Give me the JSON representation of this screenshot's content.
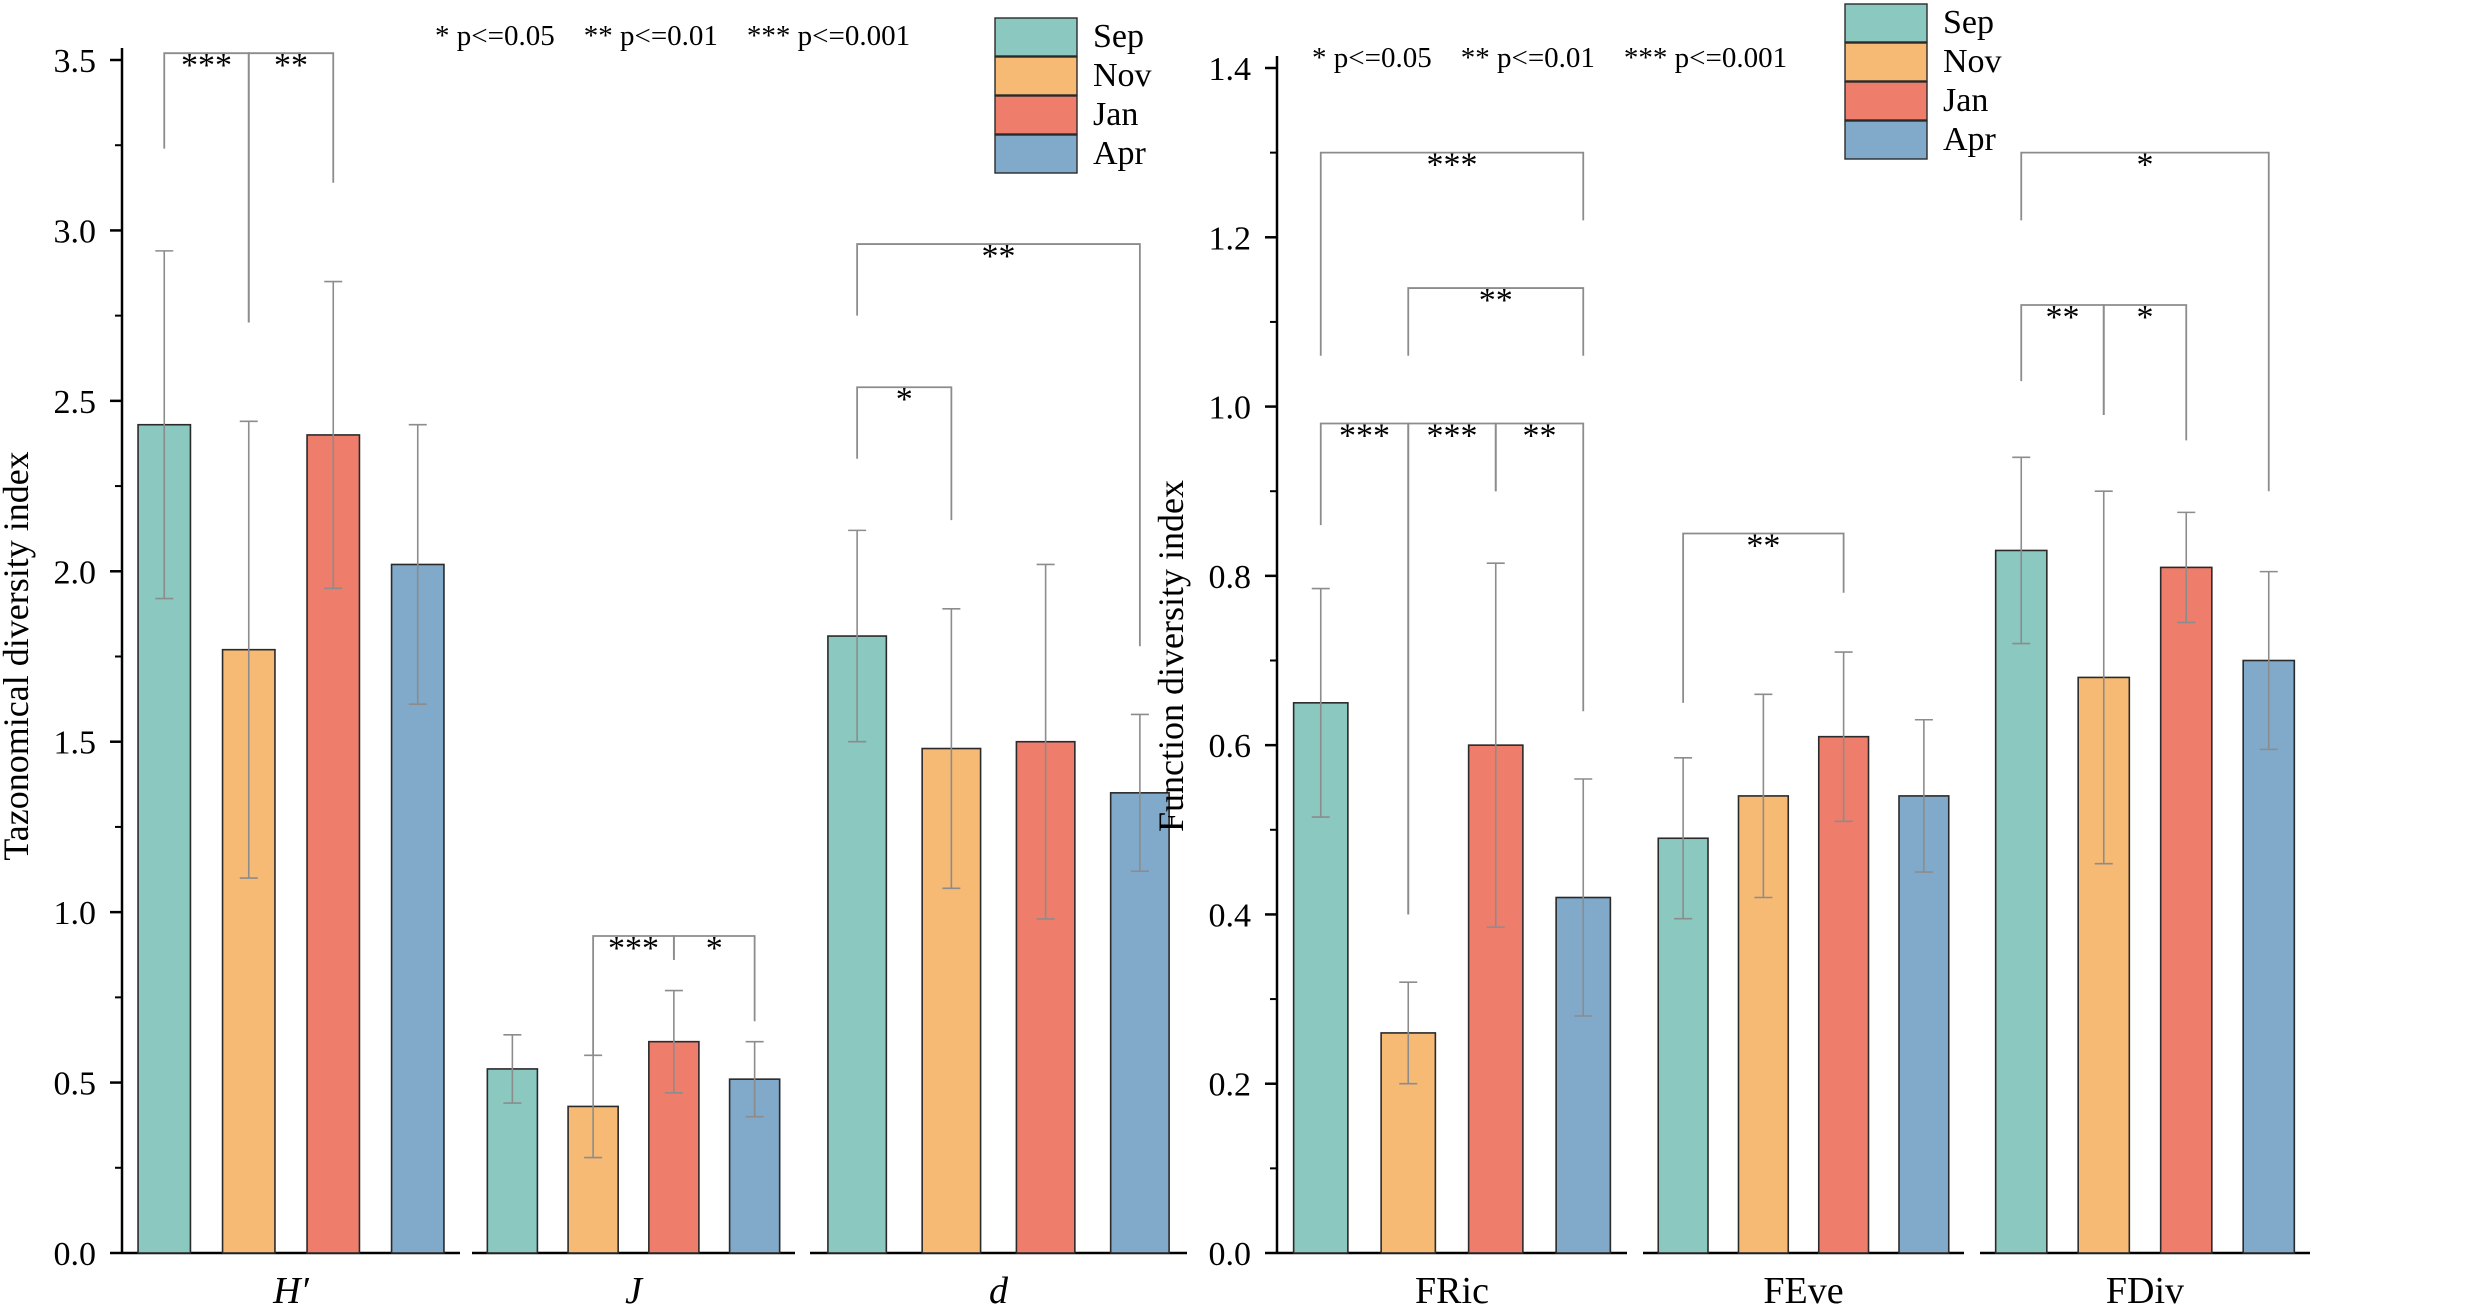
{
  "colors": {
    "Sep": "#8ac8c0",
    "Nov": "#f6ba74",
    "Jan": "#ef7d6b",
    "Apr": "#80a9ca",
    "axis": "#000000",
    "errorbar": "#8c8c8c"
  },
  "sig_key": "* p<=0.05    ** p<=0.01    *** p<=0.001",
  "chart_data": [
    {
      "type": "bar",
      "ylabel": "Tazonomical diversity index",
      "ylim": [
        0,
        3.5
      ],
      "yticks": [
        "0.0",
        "0.5",
        "1.0",
        "1.5",
        "2.0",
        "2.5",
        "3.0",
        "3.5"
      ],
      "legend": [
        "Sep",
        "Nov",
        "Jan",
        "Apr"
      ],
      "legend_position": "top-right",
      "groups": [
        {
          "name": "H′",
          "italic": true,
          "values": [
            2.43,
            1.77,
            2.4,
            2.02
          ],
          "errors": [
            0.51,
            0.67,
            0.45,
            0.41
          ],
          "sig": [
            {
              "a": 0,
              "b": 1,
              "label": "***",
              "y": 3.52,
              "ya": 3.24,
              "yb": 2.73
            },
            {
              "a": 1,
              "b": 2,
              "label": "**",
              "y": 3.52,
              "ya": 2.73,
              "yb": 3.14
            }
          ]
        },
        {
          "name": "J",
          "italic": true,
          "values": [
            0.54,
            0.43,
            0.62,
            0.51
          ],
          "errors": [
            0.1,
            0.15,
            0.15,
            0.11
          ],
          "sig": [
            {
              "a": 1,
              "b": 2,
              "label": "***",
              "y": 0.93,
              "ya": 0.58,
              "yb": 0.86
            },
            {
              "a": 2,
              "b": 3,
              "label": "*",
              "y": 0.93,
              "ya": 0.86,
              "yb": 0.68
            }
          ]
        },
        {
          "name": "d",
          "italic": true,
          "values": [
            1.81,
            1.48,
            1.5,
            1.35
          ],
          "errors": [
            0.31,
            0.41,
            0.52,
            0.23
          ],
          "sig": [
            {
              "a": 0,
              "b": 1,
              "label": "*",
              "y": 2.54,
              "ya": 2.33,
              "yb": 2.15
            },
            {
              "a": 0,
              "b": 3,
              "label": "**",
              "y": 2.96,
              "ya": 2.75,
              "yb": 1.78
            }
          ]
        }
      ]
    },
    {
      "type": "bar",
      "ylabel": "Function diversity index",
      "ylim": [
        0,
        1.4
      ],
      "yticks": [
        "0.0",
        "0.2",
        "0.4",
        "0.6",
        "0.8",
        "1.0",
        "1.2",
        "1.4"
      ],
      "legend": [
        "Sep",
        "Nov",
        "Jan",
        "Apr"
      ],
      "legend_position": "top-right",
      "groups": [
        {
          "name": "FRic",
          "italic": false,
          "values": [
            0.65,
            0.26,
            0.6,
            0.42
          ],
          "errors": [
            0.135,
            0.06,
            0.215,
            0.14
          ],
          "sig": [
            {
              "a": 0,
              "b": 1,
              "label": "***",
              "y": 0.98,
              "ya": 0.86,
              "yb": 0.4
            },
            {
              "a": 1,
              "b": 2,
              "label": "***",
              "y": 0.98,
              "ya": 0.4,
              "yb": 0.9
            },
            {
              "a": 2,
              "b": 3,
              "label": "**",
              "y": 0.98,
              "ya": 0.9,
              "yb": 0.64
            },
            {
              "a": 1,
              "b": 3,
              "label": "**",
              "y": 1.14,
              "ya": 1.06,
              "yb": 1.06
            },
            {
              "a": 0,
              "b": 3,
              "label": "***",
              "y": 1.3,
              "ya": 1.06,
              "yb": 1.22
            }
          ]
        },
        {
          "name": "FEve",
          "italic": false,
          "values": [
            0.49,
            0.54,
            0.61,
            0.54
          ],
          "errors": [
            0.095,
            0.12,
            0.1,
            0.09
          ],
          "sig": [
            {
              "a": 0,
              "b": 2,
              "label": "**",
              "y": 0.85,
              "ya": 0.65,
              "yb": 0.78
            }
          ]
        },
        {
          "name": "FDiv",
          "italic": false,
          "values": [
            0.83,
            0.68,
            0.81,
            0.7
          ],
          "errors": [
            0.11,
            0.22,
            0.065,
            0.105
          ],
          "sig": [
            {
              "a": 0,
              "b": 1,
              "label": "**",
              "y": 1.12,
              "ya": 1.03,
              "yb": 0.99
            },
            {
              "a": 1,
              "b": 2,
              "label": "*",
              "y": 1.12,
              "ya": 0.99,
              "yb": 0.96
            },
            {
              "a": 0,
              "b": 3,
              "label": "*",
              "y": 1.3,
              "ya": 1.22,
              "yb": 0.9
            }
          ]
        }
      ]
    }
  ]
}
